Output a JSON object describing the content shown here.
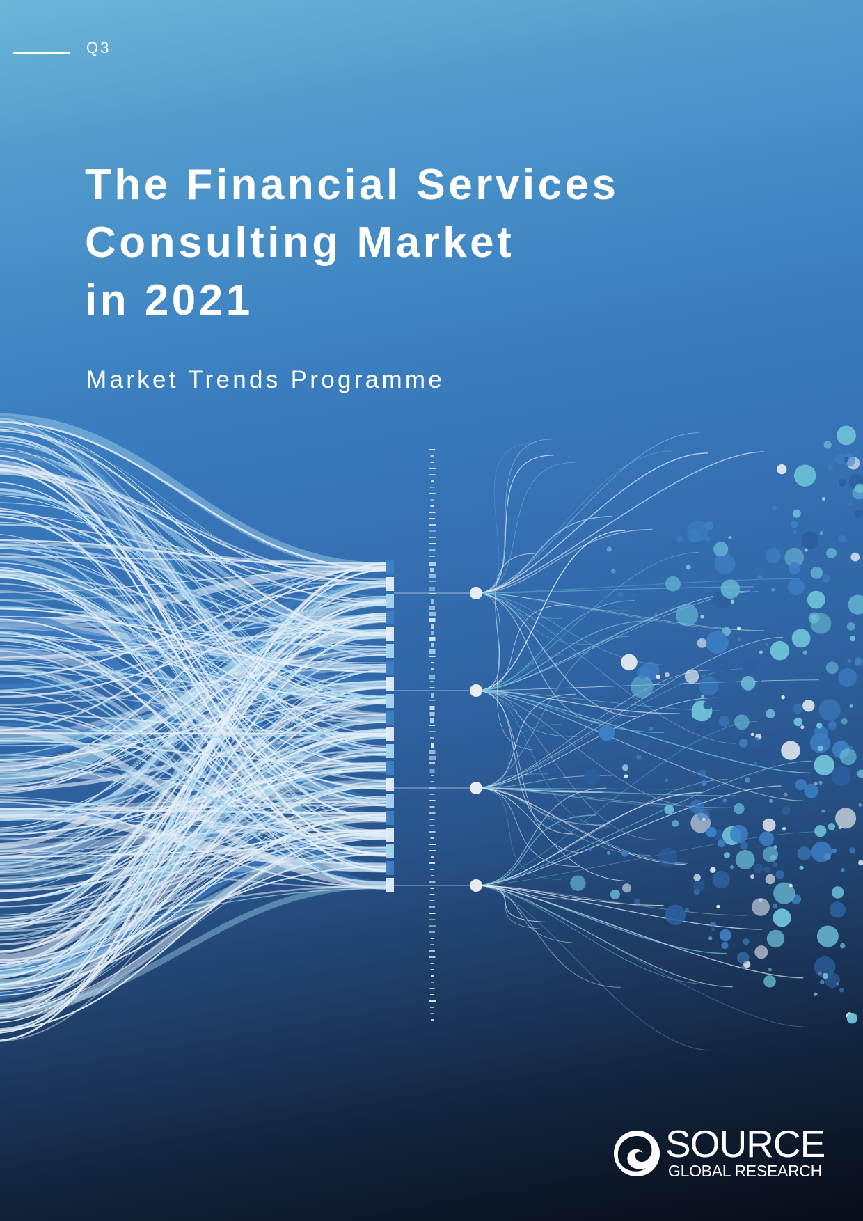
{
  "cover": {
    "issue_label": "Q3",
    "title_lines": [
      "The Financial Services",
      "Consulting Market",
      "in 2021"
    ],
    "subtitle": "Market Trends Programme"
  },
  "artwork": {
    "description_icon": "data-flow-network-graphic",
    "colors": {
      "ribbon_light": "#e4eef8",
      "ribbon_cyan": "#a8d8ee",
      "ribbon_blue": "#3f7ec4",
      "dot_white": "#e8edf2",
      "dot_teal": "#6cbfd7",
      "dot_blue": "#3d7fc4",
      "dot_dark": "#2d5f9e"
    }
  },
  "logo": {
    "wordmark": "SOURCE",
    "tagline": "GLOBAL RESEARCH",
    "icon": "swirl-logo-icon"
  }
}
